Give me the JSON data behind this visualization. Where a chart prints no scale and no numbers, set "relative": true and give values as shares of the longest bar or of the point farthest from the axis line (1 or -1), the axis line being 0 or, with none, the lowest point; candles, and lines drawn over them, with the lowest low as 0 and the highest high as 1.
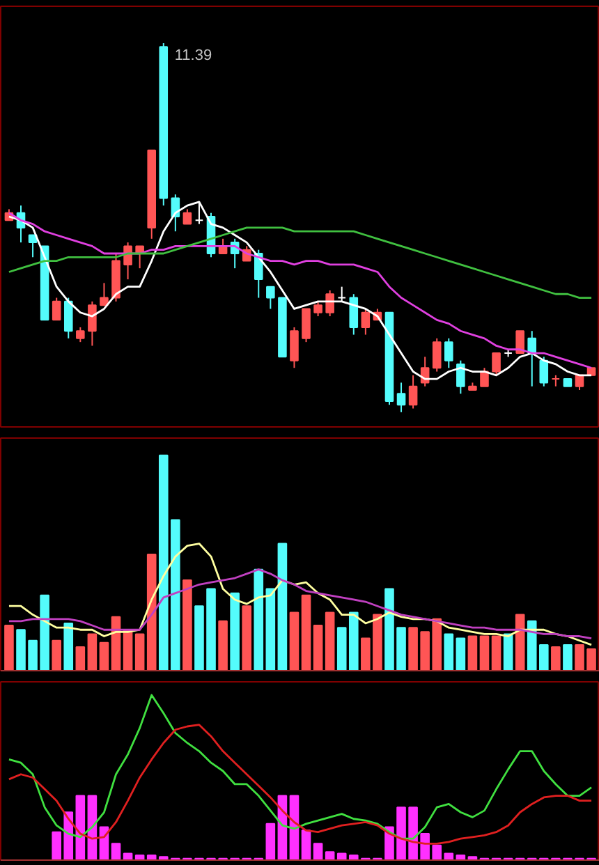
{
  "chart_data": [
    {
      "type": "candlestick",
      "relative": true,
      "annotations": [
        "11.39"
      ],
      "categories": [
        null,
        null,
        null,
        null,
        null,
        null,
        null,
        null,
        null,
        null,
        null,
        null,
        null,
        null,
        null,
        null,
        null,
        null,
        null,
        null,
        null,
        null,
        null,
        null,
        null,
        null,
        null,
        null,
        null,
        null,
        null,
        null,
        null,
        null,
        null,
        null,
        null,
        null,
        null,
        null,
        null,
        null,
        null,
        null,
        null,
        null,
        null,
        null,
        null,
        null
      ],
      "ohlc": [
        [
          0.52,
          0.55,
          0.52,
          0.54
        ],
        [
          0.54,
          0.56,
          0.46,
          0.5
        ],
        [
          0.48,
          0.48,
          0.42,
          0.46
        ],
        [
          0.45,
          0.45,
          0.25,
          0.25
        ],
        [
          0.25,
          0.31,
          0.25,
          0.3
        ],
        [
          0.3,
          0.31,
          0.2,
          0.22
        ],
        [
          0.2,
          0.23,
          0.19,
          0.22
        ],
        [
          0.22,
          0.3,
          0.18,
          0.29
        ],
        [
          0.29,
          0.35,
          0.29,
          0.31
        ],
        [
          0.31,
          0.43,
          0.3,
          0.41
        ],
        [
          0.4,
          0.46,
          0.36,
          0.45
        ],
        [
          0.43,
          0.45,
          0.39,
          0.45
        ],
        [
          0.5,
          0.71,
          0.47,
          0.71
        ],
        [
          0.99,
          1.0,
          0.56,
          0.58
        ],
        [
          0.58,
          0.59,
          0.49,
          0.53
        ],
        [
          0.51,
          0.55,
          0.51,
          0.54
        ],
        [
          0.52,
          0.57,
          0.51,
          0.52
        ],
        [
          0.53,
          0.54,
          0.42,
          0.43
        ],
        [
          0.43,
          0.47,
          0.43,
          0.45
        ],
        [
          0.46,
          0.47,
          0.39,
          0.43
        ],
        [
          0.41,
          0.45,
          0.41,
          0.44
        ],
        [
          0.43,
          0.44,
          0.31,
          0.36
        ],
        [
          0.34,
          0.34,
          0.28,
          0.31
        ],
        [
          0.31,
          0.31,
          0.15,
          0.15
        ],
        [
          0.14,
          0.23,
          0.12,
          0.22
        ],
        [
          0.2,
          0.28,
          0.19,
          0.28
        ],
        [
          0.27,
          0.3,
          0.26,
          0.29
        ],
        [
          0.27,
          0.33,
          0.26,
          0.32
        ],
        [
          0.31,
          0.34,
          0.3,
          0.31
        ],
        [
          0.31,
          0.32,
          0.21,
          0.23
        ],
        [
          0.23,
          0.28,
          0.21,
          0.27
        ],
        [
          0.25,
          0.28,
          0.25,
          0.27
        ],
        [
          0.27,
          0.27,
          0.02,
          0.03
        ],
        [
          0.05,
          0.08,
          0.0,
          0.02
        ],
        [
          0.02,
          0.1,
          0.01,
          0.07
        ],
        [
          0.08,
          0.15,
          0.07,
          0.12
        ],
        [
          0.12,
          0.2,
          0.11,
          0.19
        ],
        [
          0.19,
          0.2,
          0.12,
          0.14
        ],
        [
          0.13,
          0.14,
          0.05,
          0.07
        ],
        [
          0.06,
          0.08,
          0.06,
          0.07
        ],
        [
          0.07,
          0.12,
          0.07,
          0.11
        ],
        [
          0.11,
          0.16,
          0.1,
          0.16
        ],
        [
          0.16,
          0.17,
          0.15,
          0.16
        ],
        [
          0.16,
          0.22,
          0.16,
          0.22
        ],
        [
          0.2,
          0.22,
          0.07,
          0.16
        ],
        [
          0.14,
          0.15,
          0.07,
          0.08
        ],
        [
          0.09,
          0.1,
          0.07,
          0.09
        ],
        [
          0.09,
          0.09,
          0.07,
          0.07
        ],
        [
          0.07,
          0.1,
          0.06,
          0.1
        ],
        [
          0.1,
          0.12,
          0.1,
          0.12
        ]
      ],
      "colors": [
        "#ff5555",
        "#54fcfc",
        "#54fcfc",
        "#54fcfc",
        "#ff5555",
        "#54fcfc",
        "#ff5555",
        "#ff5555",
        "#ff5555",
        "#ff5555",
        "#ff5555",
        "#ff5555",
        "#ff5555",
        "#54fcfc",
        "#54fcfc",
        "#ff5555",
        "#ffffff",
        "#54fcfc",
        "#ff5555",
        "#54fcfc",
        "#ff5555",
        "#54fcfc",
        "#54fcfc",
        "#54fcfc",
        "#ff5555",
        "#ff5555",
        "#ff5555",
        "#ff5555",
        "#ffffff",
        "#54fcfc",
        "#ff5555",
        "#ff5555",
        "#54fcfc",
        "#54fcfc",
        "#ff5555",
        "#ff5555",
        "#ff5555",
        "#54fcfc",
        "#54fcfc",
        "#ff5555",
        "#ff5555",
        "#ff5555",
        "#ffffff",
        "#ff5555",
        "#54fcfc",
        "#54fcfc",
        "#ff5555",
        "#54fcfc",
        "#ff5555",
        "#ff5555"
      ],
      "series": [
        {
          "type": "line",
          "color": "#ffffff",
          "values": [
            0.53,
            0.52,
            0.5,
            0.42,
            0.34,
            0.3,
            0.27,
            0.26,
            0.28,
            0.32,
            0.34,
            0.34,
            0.41,
            0.49,
            0.54,
            0.56,
            0.57,
            0.51,
            0.5,
            0.48,
            0.46,
            0.42,
            0.38,
            0.33,
            0.28,
            0.29,
            0.3,
            0.3,
            0.3,
            0.29,
            0.28,
            0.26,
            0.21,
            0.16,
            0.11,
            0.09,
            0.09,
            0.11,
            0.12,
            0.11,
            0.11,
            0.1,
            0.12,
            0.15,
            0.16,
            0.14,
            0.13,
            0.11,
            0.1,
            0.1
          ]
        },
        {
          "type": "line",
          "color": "#e040e0",
          "values": [
            0.54,
            0.52,
            0.51,
            0.49,
            0.48,
            0.47,
            0.46,
            0.45,
            0.43,
            0.43,
            0.43,
            0.43,
            0.44,
            0.44,
            0.45,
            0.45,
            0.45,
            0.45,
            0.45,
            0.45,
            0.43,
            0.42,
            0.41,
            0.41,
            0.4,
            0.41,
            0.41,
            0.4,
            0.4,
            0.4,
            0.39,
            0.38,
            0.34,
            0.31,
            0.29,
            0.27,
            0.25,
            0.24,
            0.22,
            0.21,
            0.2,
            0.18,
            0.17,
            0.17,
            0.16,
            0.16,
            0.15,
            0.14,
            0.13,
            0.12
          ]
        },
        {
          "type": "line",
          "color": "#40c040",
          "values": [
            0.38,
            0.39,
            0.4,
            0.41,
            0.41,
            0.42,
            0.42,
            0.42,
            0.42,
            0.42,
            0.43,
            0.43,
            0.43,
            0.43,
            0.44,
            0.45,
            0.46,
            0.47,
            0.48,
            0.49,
            0.5,
            0.5,
            0.5,
            0.5,
            0.49,
            0.49,
            0.49,
            0.49,
            0.49,
            0.49,
            0.48,
            0.47,
            0.46,
            0.45,
            0.44,
            0.43,
            0.42,
            0.41,
            0.4,
            0.39,
            0.38,
            0.37,
            0.36,
            0.35,
            0.34,
            0.33,
            0.32,
            0.32,
            0.31,
            0.31
          ]
        }
      ]
    },
    {
      "type": "bar",
      "relative": true,
      "categories": [
        null,
        null,
        null,
        null,
        null,
        null,
        null,
        null,
        null,
        null,
        null,
        null,
        null,
        null,
        null,
        null,
        null,
        null,
        null,
        null,
        null,
        null,
        null,
        null,
        null,
        null,
        null,
        null,
        null,
        null,
        null,
        null,
        null,
        null,
        null,
        null,
        null,
        null,
        null,
        null,
        null,
        null,
        null,
        null,
        null,
        null,
        null,
        null,
        null,
        null
      ],
      "values": [
        0.21,
        0.19,
        0.14,
        0.35,
        0.14,
        0.22,
        0.11,
        0.17,
        0.13,
        0.25,
        0.19,
        0.17,
        0.54,
        1.0,
        0.7,
        0.42,
        0.3,
        0.38,
        0.23,
        0.36,
        0.3,
        0.47,
        0.38,
        0.59,
        0.27,
        0.35,
        0.21,
        0.27,
        0.2,
        0.27,
        0.15,
        0.26,
        0.38,
        0.2,
        0.2,
        0.18,
        0.24,
        0.17,
        0.15,
        0.16,
        0.16,
        0.16,
        0.17,
        0.26,
        0.23,
        0.12,
        0.11,
        0.12,
        0.12,
        0.1
      ],
      "colors": [
        "#ff5555",
        "#54fcfc",
        "#54fcfc",
        "#54fcfc",
        "#ff5555",
        "#54fcfc",
        "#ff5555",
        "#ff5555",
        "#ff5555",
        "#ff5555",
        "#ff5555",
        "#ff5555",
        "#ff5555",
        "#54fcfc",
        "#54fcfc",
        "#ff5555",
        "#54fcfc",
        "#54fcfc",
        "#ff5555",
        "#54fcfc",
        "#ff5555",
        "#54fcfc",
        "#54fcfc",
        "#54fcfc",
        "#ff5555",
        "#ff5555",
        "#ff5555",
        "#ff5555",
        "#54fcfc",
        "#54fcfc",
        "#ff5555",
        "#ff5555",
        "#54fcfc",
        "#54fcfc",
        "#ff5555",
        "#ff5555",
        "#ff5555",
        "#54fcfc",
        "#54fcfc",
        "#ff5555",
        "#ff5555",
        "#ff5555",
        "#54fcfc",
        "#ff5555",
        "#54fcfc",
        "#54fcfc",
        "#ff5555",
        "#54fcfc",
        "#ff5555",
        "#ff5555"
      ],
      "series": [
        {
          "type": "line",
          "color": "#ffffa0",
          "values": [
            0.3,
            0.3,
            0.26,
            0.23,
            0.2,
            0.2,
            0.19,
            0.19,
            0.16,
            0.18,
            0.18,
            0.19,
            0.33,
            0.44,
            0.53,
            0.58,
            0.59,
            0.53,
            0.38,
            0.33,
            0.31,
            0.34,
            0.35,
            0.42,
            0.4,
            0.41,
            0.36,
            0.33,
            0.26,
            0.26,
            0.22,
            0.24,
            0.27,
            0.25,
            0.24,
            0.24,
            0.23,
            0.2,
            0.19,
            0.18,
            0.17,
            0.17,
            0.16,
            0.19,
            0.19,
            0.19,
            0.17,
            0.16,
            0.14,
            0.12
          ]
        },
        {
          "type": "line",
          "color": "#c040c0",
          "values": [
            0.23,
            0.23,
            0.24,
            0.24,
            0.24,
            0.24,
            0.23,
            0.21,
            0.19,
            0.19,
            0.19,
            0.19,
            0.26,
            0.34,
            0.36,
            0.38,
            0.4,
            0.41,
            0.42,
            0.43,
            0.45,
            0.47,
            0.45,
            0.42,
            0.4,
            0.37,
            0.36,
            0.35,
            0.34,
            0.33,
            0.32,
            0.3,
            0.28,
            0.26,
            0.25,
            0.24,
            0.23,
            0.22,
            0.21,
            0.2,
            0.2,
            0.19,
            0.19,
            0.19,
            0.18,
            0.17,
            0.17,
            0.16,
            0.16,
            0.15
          ]
        }
      ]
    },
    {
      "type": "bar",
      "relative": true,
      "color": "#ff30ff",
      "categories": [
        null,
        null,
        null,
        null,
        null,
        null,
        null,
        null,
        null,
        null,
        null,
        null,
        null,
        null,
        null,
        null,
        null,
        null,
        null,
        null,
        null,
        null,
        null,
        null,
        null,
        null,
        null,
        null,
        null,
        null,
        null,
        null,
        null,
        null,
        null,
        null,
        null,
        null,
        null,
        null,
        null,
        null,
        null,
        null,
        null,
        null,
        null,
        null,
        null,
        null
      ],
      "values": [
        0,
        0,
        0,
        0,
        0.17,
        0.29,
        0.39,
        0.39,
        0.2,
        0.1,
        0.04,
        0.03,
        0.03,
        0.02,
        0.01,
        0.01,
        0.01,
        0.01,
        0.01,
        0.01,
        0.01,
        0.01,
        0.22,
        0.39,
        0.39,
        0.18,
        0.1,
        0.05,
        0.04,
        0.03,
        0.01,
        0.01,
        0.2,
        0.32,
        0.32,
        0.16,
        0.09,
        0.04,
        0.03,
        0.02,
        0.01,
        0.01,
        0.01,
        0.01,
        0.01,
        0.01,
        0.01,
        0.01,
        0.01,
        0.01
      ],
      "series": [
        {
          "type": "line",
          "color": "#40e040",
          "values": [
            0.61,
            0.59,
            0.52,
            0.32,
            0.21,
            0.16,
            0.14,
            0.2,
            0.29,
            0.52,
            0.64,
            0.8,
            1.0,
            0.89,
            0.77,
            0.71,
            0.66,
            0.59,
            0.54,
            0.46,
            0.46,
            0.39,
            0.3,
            0.21,
            0.19,
            0.22,
            0.24,
            0.26,
            0.28,
            0.25,
            0.24,
            0.22,
            0.17,
            0.13,
            0.13,
            0.2,
            0.32,
            0.34,
            0.29,
            0.26,
            0.3,
            0.43,
            0.55,
            0.66,
            0.66,
            0.54,
            0.46,
            0.39,
            0.39,
            0.44
          ]
        },
        {
          "type": "line",
          "color": "#e02020",
          "values": [
            0.49,
            0.52,
            0.5,
            0.43,
            0.36,
            0.25,
            0.16,
            0.13,
            0.14,
            0.23,
            0.36,
            0.5,
            0.61,
            0.71,
            0.79,
            0.81,
            0.82,
            0.75,
            0.66,
            0.59,
            0.52,
            0.45,
            0.38,
            0.3,
            0.23,
            0.18,
            0.17,
            0.19,
            0.21,
            0.22,
            0.23,
            0.21,
            0.16,
            0.13,
            0.11,
            0.1,
            0.1,
            0.11,
            0.13,
            0.14,
            0.15,
            0.17,
            0.21,
            0.29,
            0.34,
            0.38,
            0.39,
            0.39,
            0.36,
            0.36
          ]
        }
      ]
    }
  ]
}
